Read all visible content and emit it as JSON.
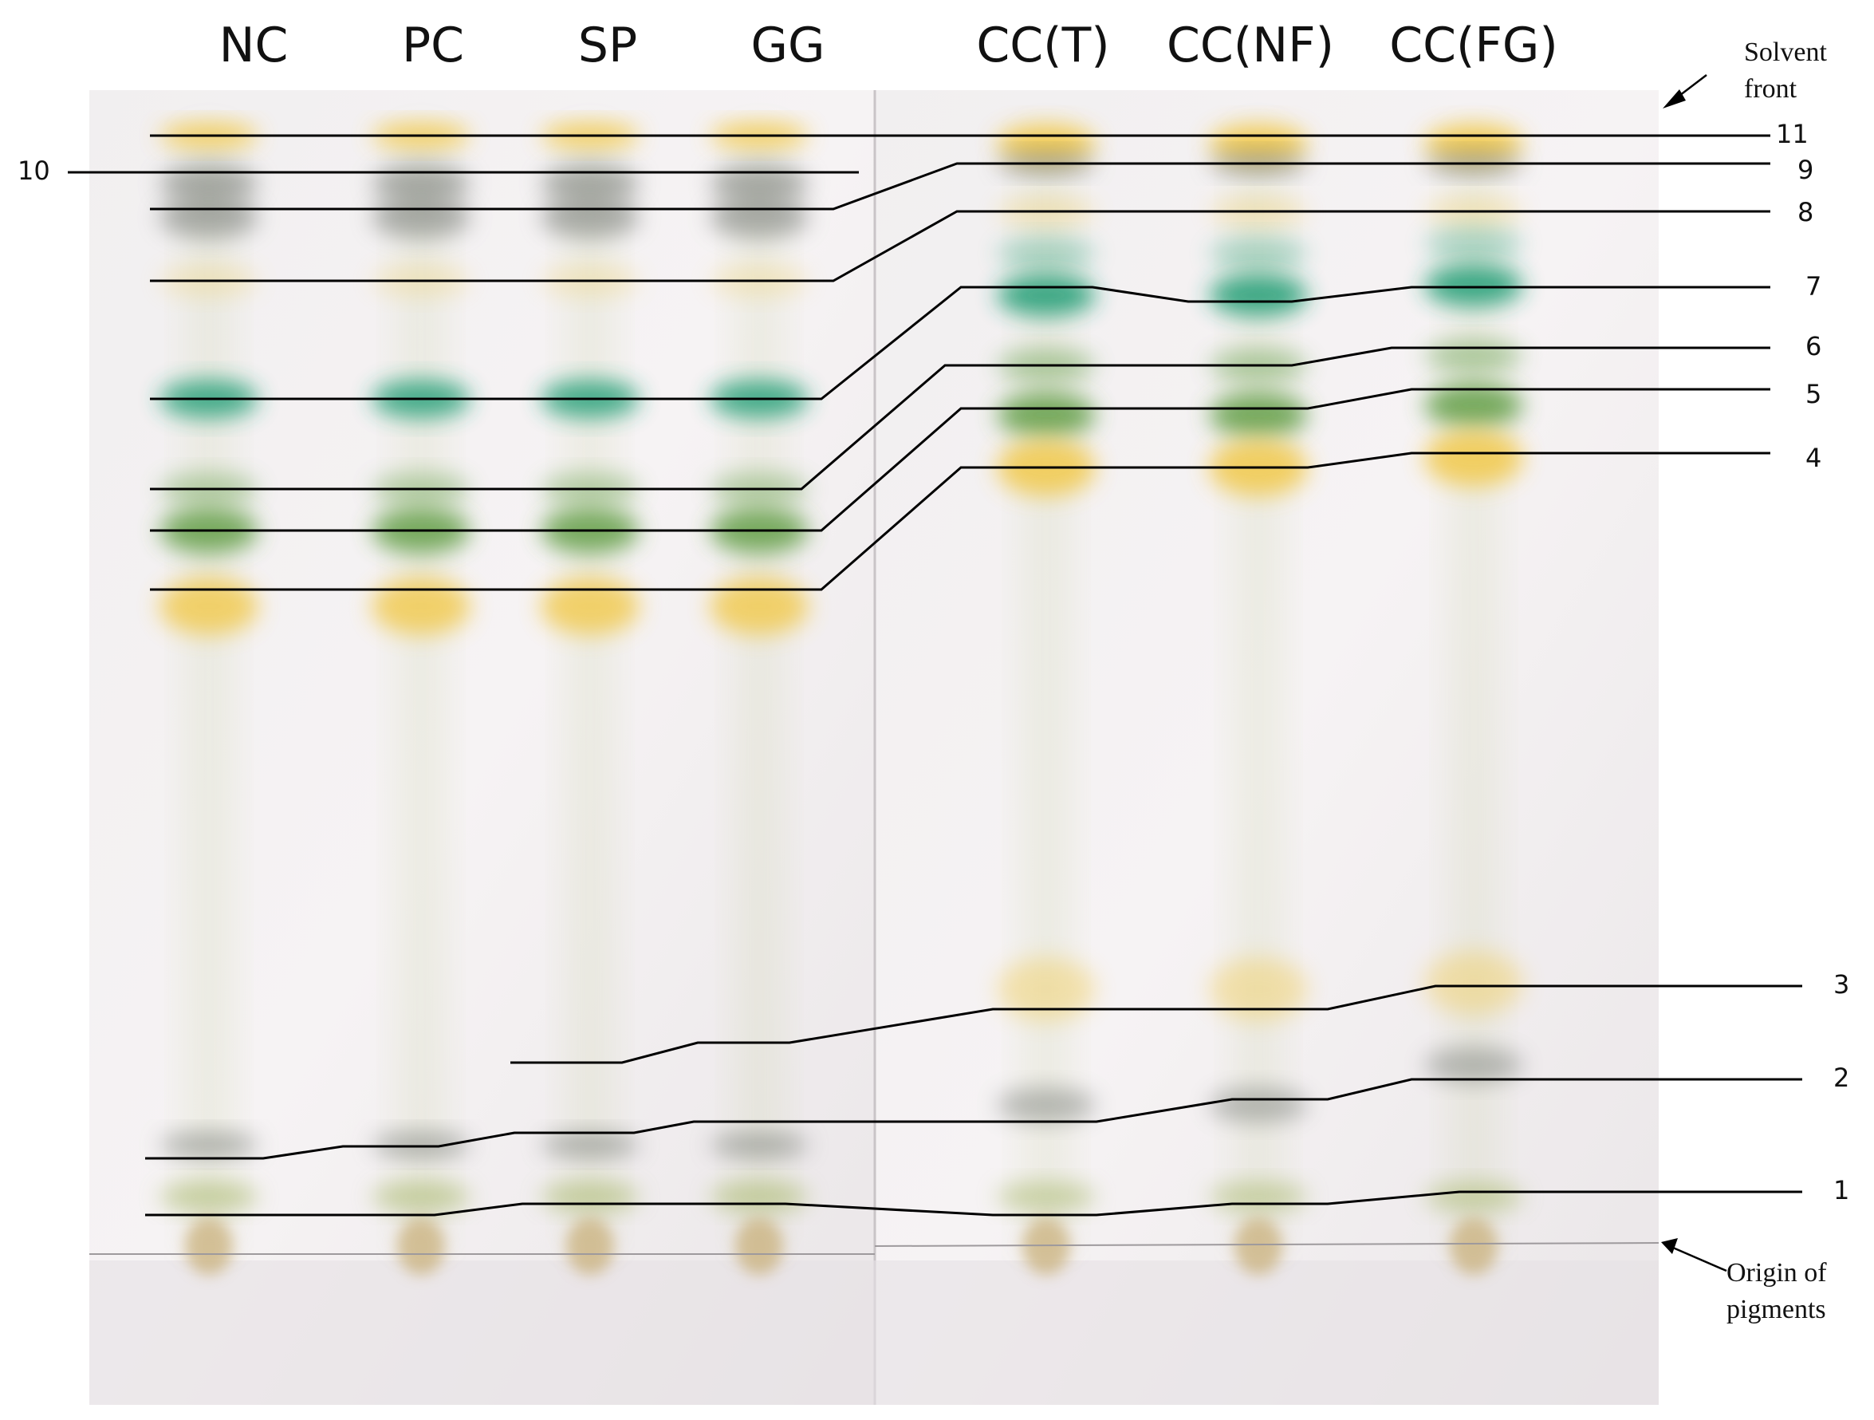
{
  "figure": {
    "lane_labels": [
      "NC",
      "PC",
      "SP",
      "GG",
      "CC(T)",
      "CC(NF)",
      "CC(FG)"
    ],
    "band_numbers": [
      "11",
      "10",
      "9",
      "8",
      "7",
      "6",
      "5",
      "4",
      "3",
      "2",
      "1"
    ],
    "annotations": {
      "solvent_front_line1": "Solvent",
      "solvent_front_line2": "front",
      "origin_line1": "Origin of",
      "origin_line2": "pigments"
    },
    "pigment_colors": {
      "yellow": "#f2c94c",
      "green": "#5a9a3c",
      "blue_green": "#2aa17a",
      "grey": "#6f7570",
      "olive": "#a8b86a",
      "origin": "#c9b07a"
    }
  }
}
